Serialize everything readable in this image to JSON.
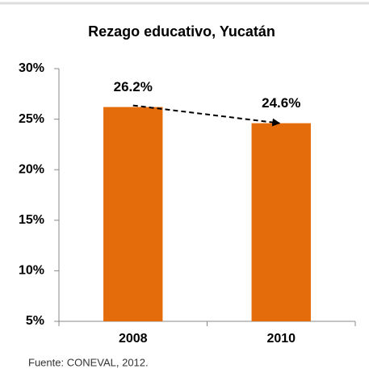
{
  "chart_data": {
    "type": "bar",
    "title": "Rezago educativo, Yucatán",
    "categories": [
      "2008",
      "2010"
    ],
    "values": [
      26.2,
      24.6
    ],
    "value_labels": [
      "26.2%",
      "24.6%"
    ],
    "color": "#e46c0a",
    "ylim": [
      5,
      30
    ],
    "yticks": [
      {
        "value": 5,
        "label": "5%"
      },
      {
        "value": 10,
        "label": "10%"
      },
      {
        "value": 15,
        "label": "15%"
      },
      {
        "value": 20,
        "label": "20%"
      },
      {
        "value": 25,
        "label": "25%"
      },
      {
        "value": 30,
        "label": "30%"
      }
    ],
    "grid": false,
    "note": "Fuente: CONEVAL, 2012."
  }
}
